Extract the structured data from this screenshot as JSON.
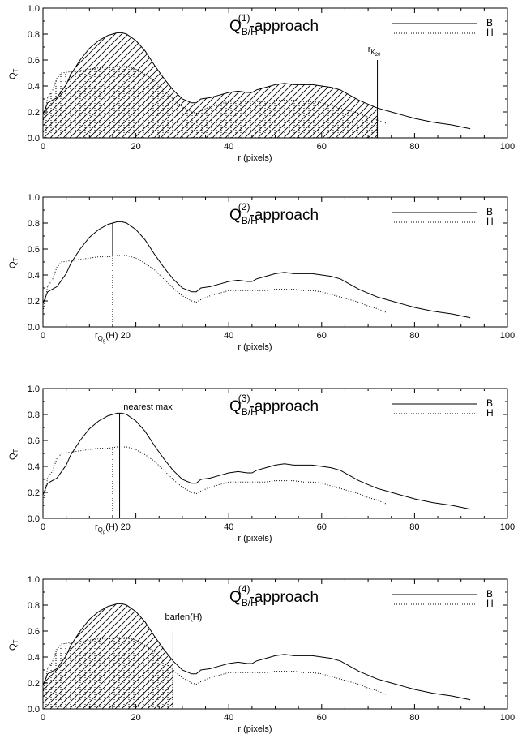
{
  "chart_data": [
    {
      "type": "line",
      "title_main": "Q",
      "title_sub": "B/H",
      "title_sup": "(1)",
      "title_suffix": "-approach",
      "xlabel": "r (pixels)",
      "ylabel_main": "Q",
      "ylabel_sub": "T",
      "xlim": [
        0,
        100
      ],
      "ylim": [
        0,
        1.0
      ],
      "xticks": [
        "0",
        "20",
        "40",
        "60",
        "80",
        "100"
      ],
      "yticks": [
        "0.0",
        "0.2",
        "0.4",
        "0.6",
        "0.8",
        "1.0"
      ],
      "legend": [
        "B",
        "H"
      ],
      "legend_position": "top-right",
      "annotation": {
        "text_main": "r",
        "text_sub": "K",
        "text_subsub": "20",
        "x": 72,
        "y_top": 0.6
      },
      "shading": {
        "series": "B",
        "from_x": 0,
        "to_x": 72,
        "pattern": "diagonal"
      },
      "shading2": {
        "series": "H",
        "from_x": 0,
        "to_x": 72,
        "pattern": "dots"
      },
      "series": [
        {
          "name": "B",
          "style": "solid",
          "x": [
            0,
            1,
            2,
            3,
            4,
            5,
            6,
            8,
            10,
            12,
            14,
            16,
            17,
            18,
            20,
            22,
            24,
            26,
            28,
            30,
            32,
            33,
            34,
            36,
            38,
            40,
            42,
            44,
            45,
            46,
            48,
            50,
            52,
            54,
            56,
            58,
            60,
            62,
            64,
            66,
            68,
            70,
            72,
            74,
            76,
            78,
            80,
            84,
            88,
            92
          ],
          "y": [
            0.18,
            0.27,
            0.29,
            0.31,
            0.36,
            0.41,
            0.49,
            0.6,
            0.69,
            0.75,
            0.79,
            0.81,
            0.81,
            0.8,
            0.75,
            0.67,
            0.56,
            0.46,
            0.37,
            0.3,
            0.27,
            0.27,
            0.3,
            0.31,
            0.33,
            0.35,
            0.36,
            0.35,
            0.35,
            0.37,
            0.39,
            0.41,
            0.42,
            0.41,
            0.41,
            0.41,
            0.4,
            0.39,
            0.37,
            0.33,
            0.29,
            0.26,
            0.23,
            0.21,
            0.19,
            0.17,
            0.15,
            0.12,
            0.1,
            0.07
          ]
        },
        {
          "name": "H",
          "style": "dotted",
          "x": [
            0,
            1,
            2,
            3,
            4,
            6,
            8,
            10,
            12,
            14,
            16,
            18,
            20,
            22,
            24,
            26,
            28,
            30,
            32,
            33,
            34,
            36,
            38,
            40,
            42,
            44,
            46,
            48,
            50,
            52,
            54,
            56,
            58,
            60,
            62,
            64,
            66,
            68,
            70,
            72,
            74
          ],
          "y": [
            0.12,
            0.31,
            0.36,
            0.46,
            0.5,
            0.51,
            0.52,
            0.53,
            0.54,
            0.54,
            0.55,
            0.55,
            0.53,
            0.49,
            0.44,
            0.37,
            0.3,
            0.24,
            0.2,
            0.19,
            0.21,
            0.24,
            0.26,
            0.28,
            0.28,
            0.28,
            0.28,
            0.28,
            0.29,
            0.29,
            0.29,
            0.28,
            0.28,
            0.27,
            0.25,
            0.23,
            0.21,
            0.19,
            0.16,
            0.14,
            0.11
          ]
        }
      ]
    },
    {
      "type": "line",
      "title_main": "Q",
      "title_sub": "B/H",
      "title_sup": "(2)",
      "title_suffix": "-approach",
      "xlabel": "r (pixels)",
      "ylabel_main": "Q",
      "ylabel_sub": "T",
      "xlim": [
        0,
        100
      ],
      "ylim": [
        0,
        1.0
      ],
      "xticks": [
        "0",
        "20",
        "40",
        "60",
        "80",
        "100"
      ],
      "yticks": [
        "0.0",
        "0.2",
        "0.4",
        "0.6",
        "0.8",
        "1.0"
      ],
      "legend": [
        "B",
        "H"
      ],
      "legend_position": "top-right",
      "annotation": {
        "text_main": "r",
        "text_sub": "Q",
        "text_subsub": "g",
        "text_after": "(H)",
        "x": 15,
        "x_tick_replaced": "20"
      },
      "series": [
        {
          "name": "B",
          "style": "solid",
          "x": [
            0,
            1,
            2,
            3,
            4,
            5,
            6,
            8,
            10,
            12,
            14,
            16,
            17,
            18,
            20,
            22,
            24,
            26,
            28,
            30,
            32,
            33,
            34,
            36,
            38,
            40,
            42,
            44,
            45,
            46,
            48,
            50,
            52,
            54,
            56,
            58,
            60,
            62,
            64,
            66,
            68,
            70,
            72,
            74,
            76,
            78,
            80,
            84,
            88,
            92
          ],
          "y": [
            0.18,
            0.27,
            0.29,
            0.31,
            0.36,
            0.41,
            0.49,
            0.6,
            0.69,
            0.75,
            0.79,
            0.81,
            0.81,
            0.8,
            0.75,
            0.67,
            0.56,
            0.46,
            0.37,
            0.3,
            0.27,
            0.27,
            0.3,
            0.31,
            0.33,
            0.35,
            0.36,
            0.35,
            0.35,
            0.37,
            0.39,
            0.41,
            0.42,
            0.41,
            0.41,
            0.41,
            0.4,
            0.39,
            0.37,
            0.33,
            0.29,
            0.26,
            0.23,
            0.21,
            0.19,
            0.17,
            0.15,
            0.12,
            0.1,
            0.07
          ]
        },
        {
          "name": "H",
          "style": "dotted",
          "x": [
            0,
            1,
            2,
            3,
            4,
            6,
            8,
            10,
            12,
            14,
            16,
            18,
            20,
            22,
            24,
            26,
            28,
            30,
            32,
            33,
            34,
            36,
            38,
            40,
            42,
            44,
            46,
            48,
            50,
            52,
            54,
            56,
            58,
            60,
            62,
            64,
            66,
            68,
            70,
            72,
            74
          ],
          "y": [
            0.12,
            0.31,
            0.36,
            0.46,
            0.5,
            0.51,
            0.52,
            0.53,
            0.54,
            0.54,
            0.55,
            0.55,
            0.53,
            0.49,
            0.44,
            0.37,
            0.3,
            0.24,
            0.2,
            0.19,
            0.21,
            0.24,
            0.26,
            0.28,
            0.28,
            0.28,
            0.28,
            0.28,
            0.29,
            0.29,
            0.29,
            0.28,
            0.28,
            0.27,
            0.25,
            0.23,
            0.21,
            0.19,
            0.16,
            0.14,
            0.11
          ]
        }
      ]
    },
    {
      "type": "line",
      "title_main": "Q",
      "title_sub": "B/H",
      "title_sup": "(3)",
      "title_suffix": "-approach",
      "xlabel": "r (pixels)",
      "ylabel_main": "Q",
      "ylabel_sub": "T",
      "xlim": [
        0,
        100
      ],
      "ylim": [
        0,
        1.0
      ],
      "xticks": [
        "0",
        "20",
        "40",
        "60",
        "80",
        "100"
      ],
      "yticks": [
        "0.0",
        "0.2",
        "0.4",
        "0.6",
        "0.8",
        "1.0"
      ],
      "legend": [
        "B",
        "H"
      ],
      "legend_position": "top-right",
      "annotation": {
        "text_main": "r",
        "text_sub": "Q",
        "text_subsub": "g",
        "text_after": "(H)",
        "x": 15,
        "x_tick_replaced": "20"
      },
      "annotation2": {
        "text": "nearest max",
        "x": 16.5
      },
      "series": [
        {
          "name": "B",
          "style": "solid",
          "x": [
            0,
            1,
            2,
            3,
            4,
            5,
            6,
            8,
            10,
            12,
            14,
            16,
            17,
            18,
            20,
            22,
            24,
            26,
            28,
            30,
            32,
            33,
            34,
            36,
            38,
            40,
            42,
            44,
            45,
            46,
            48,
            50,
            52,
            54,
            56,
            58,
            60,
            62,
            64,
            66,
            68,
            70,
            72,
            74,
            76,
            78,
            80,
            84,
            88,
            92
          ],
          "y": [
            0.18,
            0.27,
            0.29,
            0.31,
            0.36,
            0.41,
            0.49,
            0.6,
            0.69,
            0.75,
            0.79,
            0.81,
            0.81,
            0.8,
            0.75,
            0.67,
            0.56,
            0.46,
            0.37,
            0.3,
            0.27,
            0.27,
            0.3,
            0.31,
            0.33,
            0.35,
            0.36,
            0.35,
            0.35,
            0.37,
            0.39,
            0.41,
            0.42,
            0.41,
            0.41,
            0.41,
            0.4,
            0.39,
            0.37,
            0.33,
            0.29,
            0.26,
            0.23,
            0.21,
            0.19,
            0.17,
            0.15,
            0.12,
            0.1,
            0.07
          ]
        },
        {
          "name": "H",
          "style": "dotted",
          "x": [
            0,
            1,
            2,
            3,
            4,
            6,
            8,
            10,
            12,
            14,
            16,
            18,
            20,
            22,
            24,
            26,
            28,
            30,
            32,
            33,
            34,
            36,
            38,
            40,
            42,
            44,
            46,
            48,
            50,
            52,
            54,
            56,
            58,
            60,
            62,
            64,
            66,
            68,
            70,
            72,
            74
          ],
          "y": [
            0.12,
            0.31,
            0.36,
            0.46,
            0.5,
            0.51,
            0.52,
            0.53,
            0.54,
            0.54,
            0.55,
            0.55,
            0.53,
            0.49,
            0.44,
            0.37,
            0.3,
            0.24,
            0.2,
            0.19,
            0.21,
            0.24,
            0.26,
            0.28,
            0.28,
            0.28,
            0.28,
            0.28,
            0.29,
            0.29,
            0.29,
            0.28,
            0.28,
            0.27,
            0.25,
            0.23,
            0.21,
            0.19,
            0.16,
            0.14,
            0.11
          ]
        }
      ]
    },
    {
      "type": "line",
      "title_main": "Q",
      "title_sub": "B/H",
      "title_sup": "(4)",
      "title_suffix": "-approach",
      "xlabel": "r (pixels)",
      "ylabel_main": "Q",
      "ylabel_sub": "T",
      "xlim": [
        0,
        100
      ],
      "ylim": [
        0,
        1.0
      ],
      "xticks": [
        "0",
        "20",
        "40",
        "60",
        "80",
        "100"
      ],
      "yticks": [
        "0.0",
        "0.2",
        "0.4",
        "0.6",
        "0.8",
        "1.0"
      ],
      "legend": [
        "B",
        "H"
      ],
      "legend_position": "top-right",
      "annotation": {
        "text": "barlen(H)",
        "x": 28,
        "y_top": 0.6
      },
      "shading": {
        "series": "B",
        "from_x": 0,
        "to_x": 28,
        "pattern": "diagonal"
      },
      "shading2": {
        "series": "H",
        "from_x": 0,
        "to_x": 28,
        "pattern": "dots"
      },
      "series": [
        {
          "name": "B",
          "style": "solid",
          "x": [
            0,
            1,
            2,
            3,
            4,
            5,
            6,
            8,
            10,
            12,
            14,
            16,
            17,
            18,
            20,
            22,
            24,
            26,
            28,
            30,
            32,
            33,
            34,
            36,
            38,
            40,
            42,
            44,
            45,
            46,
            48,
            50,
            52,
            54,
            56,
            58,
            60,
            62,
            64,
            66,
            68,
            70,
            72,
            74,
            76,
            78,
            80,
            84,
            88,
            92
          ],
          "y": [
            0.18,
            0.27,
            0.29,
            0.31,
            0.36,
            0.41,
            0.49,
            0.6,
            0.69,
            0.75,
            0.79,
            0.81,
            0.81,
            0.8,
            0.75,
            0.67,
            0.56,
            0.46,
            0.37,
            0.3,
            0.27,
            0.27,
            0.3,
            0.31,
            0.33,
            0.35,
            0.36,
            0.35,
            0.35,
            0.37,
            0.39,
            0.41,
            0.42,
            0.41,
            0.41,
            0.41,
            0.4,
            0.39,
            0.37,
            0.33,
            0.29,
            0.26,
            0.23,
            0.21,
            0.19,
            0.17,
            0.15,
            0.12,
            0.1,
            0.07
          ]
        },
        {
          "name": "H",
          "style": "dotted",
          "x": [
            0,
            1,
            2,
            3,
            4,
            6,
            8,
            10,
            12,
            14,
            16,
            18,
            20,
            22,
            24,
            26,
            28,
            30,
            32,
            33,
            34,
            36,
            38,
            40,
            42,
            44,
            46,
            48,
            50,
            52,
            54,
            56,
            58,
            60,
            62,
            64,
            66,
            68,
            70,
            72,
            74
          ],
          "y": [
            0.12,
            0.31,
            0.36,
            0.46,
            0.5,
            0.51,
            0.52,
            0.53,
            0.54,
            0.54,
            0.55,
            0.55,
            0.53,
            0.49,
            0.44,
            0.37,
            0.3,
            0.24,
            0.2,
            0.19,
            0.21,
            0.24,
            0.26,
            0.28,
            0.28,
            0.28,
            0.28,
            0.28,
            0.29,
            0.29,
            0.29,
            0.28,
            0.28,
            0.27,
            0.25,
            0.23,
            0.21,
            0.19,
            0.16,
            0.14,
            0.11
          ]
        }
      ]
    }
  ]
}
